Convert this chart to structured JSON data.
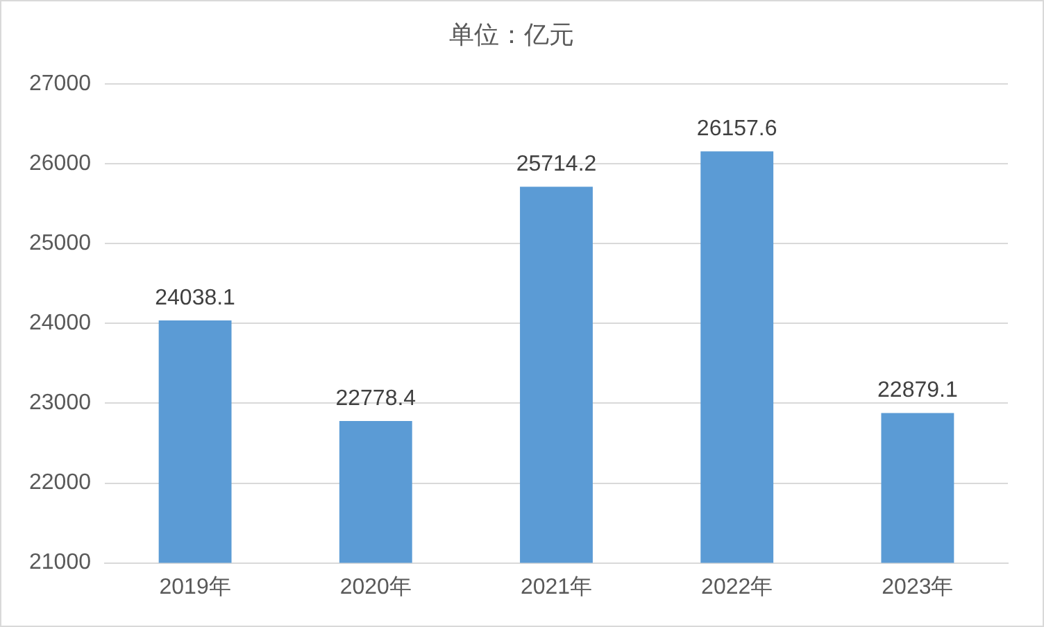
{
  "chart_data": {
    "type": "bar",
    "title": "单位：亿元",
    "categories": [
      "2019年",
      "2020年",
      "2021年",
      "2022年",
      "2023年"
    ],
    "values": [
      24038.1,
      22778.4,
      25714.2,
      26157.6,
      22879.1
    ],
    "color": "#5b9bd5",
    "ylim": [
      21000,
      27000
    ],
    "yticks": [
      21000,
      22000,
      23000,
      24000,
      25000,
      26000,
      27000
    ],
    "grid": "y",
    "data_labels": true,
    "legend": false
  }
}
